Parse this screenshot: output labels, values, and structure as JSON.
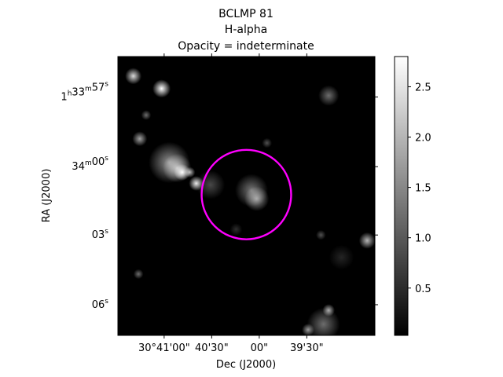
{
  "chart_data": {
    "type": "heatmap",
    "title_lines": [
      "BCLMP 81",
      "H-alpha",
      "Opacity = indeterminate"
    ],
    "xlabel": "Dec (J2000)",
    "ylabel": "RA (J2000)",
    "x_ticks": [
      {
        "label": "30°41'00\"",
        "value": 0.18
      },
      {
        "label": "40'30\"",
        "value": 0.365
      },
      {
        "label": "00\"",
        "value": 0.55
      },
      {
        "label": "39'30\"",
        "value": 0.735
      }
    ],
    "y_ticks": [
      {
        "h": "1",
        "hs": "h",
        "m": "33",
        "ms": "m",
        "s": "57",
        "ss": "s",
        "value": 0.855
      },
      {
        "h": "",
        "hs": "",
        "m": "34",
        "ms": "m",
        "s": "00",
        "ss": "s",
        "value": 0.605
      },
      {
        "h": "",
        "hs": "",
        "m": "",
        "ms": "",
        "s": "03",
        "ss": "s",
        "value": 0.36
      },
      {
        "h": "",
        "hs": "",
        "m": "",
        "ms": "",
        "s": "06",
        "ss": "s",
        "value": 0.11
      }
    ],
    "colorbar": {
      "colormap": "gray",
      "range": [
        0.03,
        2.8
      ],
      "ticks": [
        0.5,
        1.0,
        1.5,
        2.0,
        2.5
      ],
      "tick_labels": [
        "0.5",
        "1.0",
        "1.5",
        "2.0",
        "2.5"
      ]
    },
    "aperture": {
      "shape": "circle",
      "color": "#ff00ff",
      "center": [
        0.5,
        0.505
      ],
      "radius": 0.167
    },
    "sources": [
      {
        "x": 0.06,
        "y": 0.93,
        "r": 0.02,
        "v": 2.4
      },
      {
        "x": 0.17,
        "y": 0.885,
        "r": 0.022,
        "v": 2.8
      },
      {
        "x": 0.11,
        "y": 0.79,
        "r": 0.012,
        "v": 1.2
      },
      {
        "x": 0.085,
        "y": 0.705,
        "r": 0.018,
        "v": 1.8
      },
      {
        "x": 0.2,
        "y": 0.62,
        "r": 0.05,
        "v": 1.6
      },
      {
        "x": 0.23,
        "y": 0.6,
        "r": 0.035,
        "v": 1.9
      },
      {
        "x": 0.25,
        "y": 0.585,
        "r": 0.02,
        "v": 2.8
      },
      {
        "x": 0.28,
        "y": 0.585,
        "r": 0.013,
        "v": 2.0
      },
      {
        "x": 0.305,
        "y": 0.545,
        "r": 0.018,
        "v": 2.6
      },
      {
        "x": 0.36,
        "y": 0.54,
        "r": 0.035,
        "v": 0.8
      },
      {
        "x": 0.52,
        "y": 0.52,
        "r": 0.04,
        "v": 1.3
      },
      {
        "x": 0.54,
        "y": 0.49,
        "r": 0.03,
        "v": 1.7
      },
      {
        "x": 0.58,
        "y": 0.69,
        "r": 0.012,
        "v": 0.9
      },
      {
        "x": 0.82,
        "y": 0.86,
        "r": 0.025,
        "v": 1.2
      },
      {
        "x": 0.79,
        "y": 0.36,
        "r": 0.012,
        "v": 0.9
      },
      {
        "x": 0.97,
        "y": 0.34,
        "r": 0.02,
        "v": 2.0
      },
      {
        "x": 0.08,
        "y": 0.22,
        "r": 0.012,
        "v": 1.2
      },
      {
        "x": 0.82,
        "y": 0.09,
        "r": 0.015,
        "v": 1.9
      },
      {
        "x": 0.8,
        "y": 0.04,
        "r": 0.04,
        "v": 1.2
      },
      {
        "x": 0.74,
        "y": 0.02,
        "r": 0.015,
        "v": 1.7
      },
      {
        "x": 0.46,
        "y": 0.38,
        "r": 0.015,
        "v": 0.5
      },
      {
        "x": 0.87,
        "y": 0.28,
        "r": 0.03,
        "v": 0.4
      }
    ]
  }
}
